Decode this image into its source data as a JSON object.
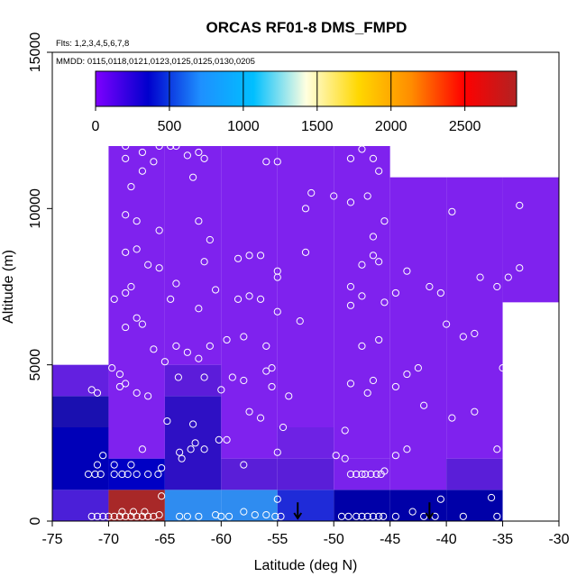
{
  "chart_data": {
    "type": "heatmap",
    "title": "ORCAS RF01-8 DMS_FMPD",
    "flights_text": "Flts: 1,2,3,4,5,6,7,8",
    "dates_text": "MMDD: 0115,0118,0121,0123,0125,0125,0130,0205",
    "xlabel": "Latitude (deg N)",
    "ylabel": "Altitude (m)",
    "xlim": [
      -75,
      -30
    ],
    "ylim": [
      0,
      15000
    ],
    "x_ticks": [
      -75,
      -70,
      -65,
      -60,
      -55,
      -50,
      -45,
      -40,
      -35,
      -30
    ],
    "y_ticks": [
      0,
      5000,
      10000,
      15000
    ],
    "colorbar": {
      "range": [
        0,
        2850
      ],
      "ticks": [
        0,
        500,
        1000,
        1500,
        2000,
        2500
      ],
      "colors": [
        "#7F00FF",
        "#0000CD",
        "#1E90FF",
        "#00BFFF",
        "#FFFFE0",
        "#FFD700",
        "#FF8C00",
        "#FF0000",
        "#B22222"
      ]
    },
    "cells": [
      {
        "x0": -75,
        "x1": -70,
        "y0": 0,
        "y1": 1000,
        "color": "#4B1FD8"
      },
      {
        "x0": -75,
        "x1": -70,
        "y0": 1000,
        "y1": 3000,
        "color": "#0000B8"
      },
      {
        "x0": -75,
        "x1": -70,
        "y0": 3000,
        "y1": 4000,
        "color": "#1A10B0"
      },
      {
        "x0": -75,
        "x1": -70,
        "y0": 4000,
        "y1": 5000,
        "color": "#6320E0"
      },
      {
        "x0": -70,
        "x1": -65,
        "y0": 0,
        "y1": 1000,
        "color": "#A82828"
      },
      {
        "x0": -70,
        "x1": -65,
        "y0": 1000,
        "y1": 2000,
        "color": "#0000C4"
      },
      {
        "x0": -70,
        "x1": -65,
        "y0": 2000,
        "y1": 12000,
        "color": "#7F22EE"
      },
      {
        "x0": -65,
        "x1": -60,
        "y0": 0,
        "y1": 1000,
        "color": "#2F8CF0"
      },
      {
        "x0": -65,
        "x1": -60,
        "y0": 1000,
        "y1": 4000,
        "color": "#2E10C4"
      },
      {
        "x0": -65,
        "x1": -60,
        "y0": 4000,
        "y1": 5000,
        "color": "#5C1CDA"
      },
      {
        "x0": -65,
        "x1": -60,
        "y0": 5000,
        "y1": 12000,
        "color": "#7F22EE"
      },
      {
        "x0": -60,
        "x1": -55,
        "y0": 0,
        "y1": 1000,
        "color": "#2F8CF0"
      },
      {
        "x0": -60,
        "x1": -55,
        "y0": 1000,
        "y1": 2000,
        "color": "#5A1ED8"
      },
      {
        "x0": -60,
        "x1": -55,
        "y0": 2000,
        "y1": 12000,
        "color": "#7F22EE"
      },
      {
        "x0": -55,
        "x1": -50,
        "y0": 0,
        "y1": 1000,
        "color": "#1F2BD8"
      },
      {
        "x0": -55,
        "x1": -50,
        "y0": 1000,
        "y1": 2000,
        "color": "#5A1ED8"
      },
      {
        "x0": -55,
        "x1": -50,
        "y0": 2000,
        "y1": 3000,
        "color": "#6E22E4"
      },
      {
        "x0": -55,
        "x1": -50,
        "y0": 3000,
        "y1": 12000,
        "color": "#7F22EE"
      },
      {
        "x0": -50,
        "x1": -45,
        "y0": 0,
        "y1": 1000,
        "color": "#0000A8"
      },
      {
        "x0": -50,
        "x1": -45,
        "y0": 1000,
        "y1": 2000,
        "color": "#7A22EC"
      },
      {
        "x0": -50,
        "x1": -45,
        "y0": 2000,
        "y1": 12000,
        "color": "#7F22EE"
      },
      {
        "x0": -45,
        "x1": -40,
        "y0": 0,
        "y1": 1000,
        "color": "#0000A8"
      },
      {
        "x0": -45,
        "x1": -40,
        "y0": 1000,
        "y1": 11000,
        "color": "#7F22EE"
      },
      {
        "x0": -40,
        "x1": -35,
        "y0": 0,
        "y1": 1000,
        "color": "#0000A8"
      },
      {
        "x0": -40,
        "x1": -35,
        "y0": 1000,
        "y1": 2000,
        "color": "#5A1ED8"
      },
      {
        "x0": -40,
        "x1": -35,
        "y0": 2000,
        "y1": 11000,
        "color": "#7F22EE"
      },
      {
        "x0": -35,
        "x1": -30,
        "y0": 7000,
        "y1": 11000,
        "color": "#7F22EE"
      }
    ],
    "arrows": [
      {
        "lat": -53.2,
        "alt": 600
      },
      {
        "lat": -41.5,
        "alt": 600
      }
    ],
    "points": [
      [
        -71.5,
        150
      ],
      [
        -71.0,
        150
      ],
      [
        -70.5,
        150
      ],
      [
        -70.0,
        150
      ],
      [
        -69.5,
        150
      ],
      [
        -69.0,
        150
      ],
      [
        -68.5,
        150
      ],
      [
        -68.0,
        150
      ],
      [
        -67.5,
        150
      ],
      [
        -67.0,
        150
      ],
      [
        -66.5,
        150
      ],
      [
        -66.0,
        150
      ],
      [
        -65.5,
        200
      ],
      [
        -68.8,
        300
      ],
      [
        -67.8,
        300
      ],
      [
        -66.8,
        300
      ],
      [
        -65.3,
        800
      ],
      [
        -63.7,
        150
      ],
      [
        -63.0,
        150
      ],
      [
        -62.0,
        150
      ],
      [
        -60.5,
        200
      ],
      [
        -60.0,
        150
      ],
      [
        -59.3,
        150
      ],
      [
        -58.0,
        300
      ],
      [
        -57.0,
        200
      ],
      [
        -56.0,
        200
      ],
      [
        -55.2,
        150
      ],
      [
        -54.7,
        150
      ],
      [
        -55.0,
        700
      ],
      [
        -49.3,
        150
      ],
      [
        -48.7,
        150
      ],
      [
        -48.0,
        150
      ],
      [
        -47.5,
        150
      ],
      [
        -47.0,
        150
      ],
      [
        -46.5,
        150
      ],
      [
        -46.0,
        150
      ],
      [
        -45.6,
        150
      ],
      [
        -44.5,
        150
      ],
      [
        -43.0,
        300
      ],
      [
        -42.0,
        150
      ],
      [
        -41.0,
        150
      ],
      [
        -40.5,
        700
      ],
      [
        -38.5,
        150
      ],
      [
        -36.0,
        750
      ],
      [
        -35.5,
        150
      ],
      [
        -71.8,
        1500
      ],
      [
        -71.2,
        1500
      ],
      [
        -70.7,
        1500
      ],
      [
        -69.5,
        1500
      ],
      [
        -68.8,
        1500
      ],
      [
        -68.3,
        1500
      ],
      [
        -67.5,
        1500
      ],
      [
        -66.5,
        1500
      ],
      [
        -65.6,
        1500
      ],
      [
        -71.0,
        1800
      ],
      [
        -69.5,
        1800
      ],
      [
        -68.0,
        1800
      ],
      [
        -70.5,
        2100
      ],
      [
        -67.0,
        2300
      ],
      [
        -65.3,
        1700
      ],
      [
        -63.5,
        2000
      ],
      [
        -63.7,
        2200
      ],
      [
        -62.7,
        2300
      ],
      [
        -62.3,
        2500
      ],
      [
        -61.5,
        2300
      ],
      [
        -59.5,
        2600
      ],
      [
        -60.2,
        2600
      ],
      [
        -58.0,
        1800
      ],
      [
        -57.5,
        3500
      ],
      [
        -56.5,
        3300
      ],
      [
        -55.0,
        2200
      ],
      [
        -54.5,
        3000
      ],
      [
        -49.8,
        2100
      ],
      [
        -49.0,
        2000
      ],
      [
        -48.5,
        1500
      ],
      [
        -48.0,
        1500
      ],
      [
        -47.5,
        1500
      ],
      [
        -47.2,
        1500
      ],
      [
        -46.7,
        1500
      ],
      [
        -46.2,
        1500
      ],
      [
        -45.8,
        1500
      ],
      [
        -45.5,
        1600
      ],
      [
        -44.5,
        2100
      ],
      [
        -43.5,
        2300
      ],
      [
        -42.0,
        3700
      ],
      [
        -39.5,
        3300
      ],
      [
        -37.5,
        3500
      ],
      [
        -35.5,
        2300
      ],
      [
        -49.0,
        2900
      ],
      [
        -71.5,
        4200
      ],
      [
        -71.0,
        4100
      ],
      [
        -69.0,
        4300
      ],
      [
        -68.5,
        4400
      ],
      [
        -67.5,
        4100
      ],
      [
        -66.5,
        4000
      ],
      [
        -64.8,
        3200
      ],
      [
        -63.8,
        4600
      ],
      [
        -62.5,
        3100
      ],
      [
        -61.5,
        4600
      ],
      [
        -60.0,
        4200
      ],
      [
        -59.0,
        4600
      ],
      [
        -58.0,
        4500
      ],
      [
        -56.0,
        4800
      ],
      [
        -55.5,
        4300
      ],
      [
        -54.0,
        4000
      ],
      [
        -48.5,
        4400
      ],
      [
        -47.0,
        4100
      ],
      [
        -46.5,
        4500
      ],
      [
        -44.5,
        4300
      ],
      [
        -43.5,
        4700
      ],
      [
        -42.5,
        4900
      ],
      [
        -35.0,
        4900
      ],
      [
        -69.7,
        4900
      ],
      [
        -69.0,
        4700
      ],
      [
        -66.0,
        5500
      ],
      [
        -65.0,
        5100
      ],
      [
        -64.0,
        5600
      ],
      [
        -63.0,
        5400
      ],
      [
        -62.0,
        5200
      ],
      [
        -61.0,
        5600
      ],
      [
        -59.5,
        5800
      ],
      [
        -58.0,
        5900
      ],
      [
        -56.0,
        5600
      ],
      [
        -55.5,
        4900
      ],
      [
        -53.0,
        6400
      ],
      [
        -47.5,
        5600
      ],
      [
        -46.0,
        5800
      ],
      [
        -40.0,
        6300
      ],
      [
        -38.5,
        5900
      ],
      [
        -37.5,
        6000
      ],
      [
        -68.5,
        6200
      ],
      [
        -67.5,
        6500
      ],
      [
        -67.0,
        6300
      ],
      [
        -64.5,
        7100
      ],
      [
        -62.0,
        6800
      ],
      [
        -60.5,
        7400
      ],
      [
        -58.5,
        7100
      ],
      [
        -57.5,
        7200
      ],
      [
        -56.5,
        7100
      ],
      [
        -55.0,
        6700
      ],
      [
        -48.5,
        6900
      ],
      [
        -47.5,
        7200
      ],
      [
        -45.5,
        7000
      ],
      [
        -44.5,
        7300
      ],
      [
        -41.5,
        7500
      ],
      [
        -40.5,
        7300
      ],
      [
        -37.0,
        7800
      ],
      [
        -35.5,
        7500
      ],
      [
        -34.5,
        7800
      ],
      [
        -33.5,
        8100
      ],
      [
        -69.5,
        7100
      ],
      [
        -68.5,
        7300
      ],
      [
        -68.0,
        7500
      ],
      [
        -66.5,
        8200
      ],
      [
        -65.5,
        8100
      ],
      [
        -64.0,
        7600
      ],
      [
        -61.5,
        8300
      ],
      [
        -57.5,
        8500
      ],
      [
        -56.5,
        8500
      ],
      [
        -55.0,
        7800
      ],
      [
        -52.5,
        8600
      ],
      [
        -48.5,
        7500
      ],
      [
        -47.5,
        8200
      ],
      [
        -46.5,
        8500
      ],
      [
        -46.0,
        8300
      ],
      [
        -43.5,
        8000
      ],
      [
        -68.5,
        8600
      ],
      [
        -67.5,
        8700
      ],
      [
        -61.0,
        9000
      ],
      [
        -58.5,
        8400
      ],
      [
        -55.0,
        8000
      ],
      [
        -68.5,
        9800
      ],
      [
        -67.5,
        9600
      ],
      [
        -65.5,
        9300
      ],
      [
        -62.0,
        9600
      ],
      [
        -52.5,
        10000
      ],
      [
        -52.0,
        10500
      ],
      [
        -50.0,
        10400
      ],
      [
        -48.5,
        10200
      ],
      [
        -47.0,
        10400
      ],
      [
        -45.5,
        9600
      ],
      [
        -46.5,
        9100
      ],
      [
        -39.5,
        9900
      ],
      [
        -33.5,
        10100
      ],
      [
        -68.5,
        11600
      ],
      [
        -67.0,
        11800
      ],
      [
        -66.0,
        11500
      ],
      [
        -64.0,
        12000
      ],
      [
        -63.0,
        11700
      ],
      [
        -62.0,
        11800
      ],
      [
        -61.5,
        11600
      ],
      [
        -56.0,
        11500
      ],
      [
        -55.0,
        11500
      ],
      [
        -48.5,
        11600
      ],
      [
        -47.5,
        11900
      ],
      [
        -46.5,
        11600
      ],
      [
        -46.0,
        11200
      ],
      [
        -68.5,
        12000
      ],
      [
        -65.5,
        12000
      ],
      [
        -64.5,
        12000
      ],
      [
        -68.0,
        10700
      ],
      [
        -67.0,
        11200
      ],
      [
        -62.5,
        11000
      ]
    ]
  }
}
